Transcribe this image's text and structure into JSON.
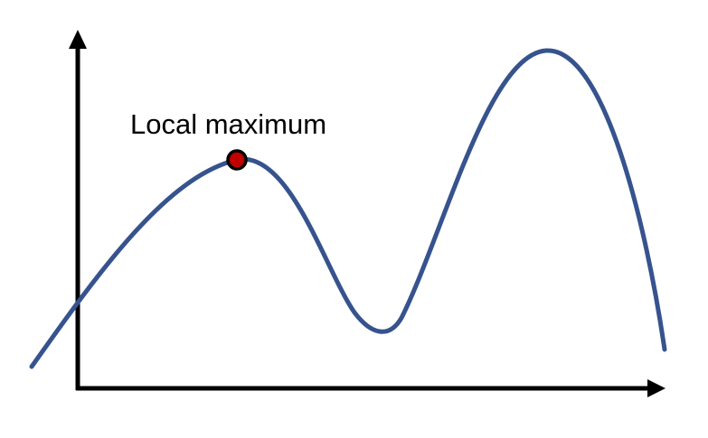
{
  "annotation": {
    "label": "Local maximum"
  },
  "colors": {
    "curve": "#36538e",
    "marker_fill": "#c00000",
    "marker_stroke": "#000000",
    "axes": "#000000"
  }
}
